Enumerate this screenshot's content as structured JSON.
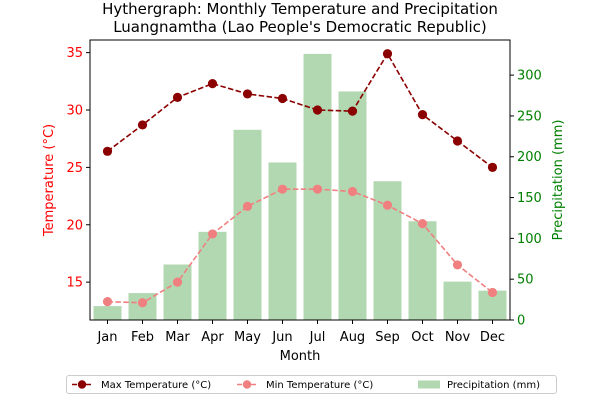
{
  "chart_data": {
    "type": "bar",
    "title_line1": "Hythergraph: Monthly Temperature and Precipitation",
    "title_line2": "Luangnamtha (Lao People's Democratic Republic)",
    "xlabel": "Month",
    "ylabel_left": "Temperature (°C)",
    "ylabel_right": "Precipitation (mm)",
    "categories": [
      "Jan",
      "Feb",
      "Mar",
      "Apr",
      "May",
      "Jun",
      "Jul",
      "Aug",
      "Sep",
      "Oct",
      "Nov",
      "Dec"
    ],
    "left_ylim": [
      11.7,
      36.1
    ],
    "left_ticks": [
      15,
      20,
      25,
      30,
      35
    ],
    "right_ylim": [
      0,
      343
    ],
    "right_ticks": [
      0,
      50,
      100,
      150,
      200,
      250,
      300
    ],
    "grid": false,
    "legend_position": "bottom",
    "series": [
      {
        "name": "Max Temperature (°C)",
        "kind": "line",
        "axis": "left",
        "color": "#8b0000",
        "dashed": true,
        "values": [
          26.4,
          28.7,
          31.1,
          32.3,
          31.4,
          31.0,
          30.0,
          29.9,
          34.9,
          29.6,
          27.3,
          25.0
        ]
      },
      {
        "name": "Min Temperature (°C)",
        "kind": "line",
        "axis": "left",
        "color": "#f08080",
        "dashed": true,
        "values": [
          13.3,
          13.2,
          15.0,
          19.2,
          21.6,
          23.1,
          23.1,
          22.9,
          21.7,
          20.1,
          16.5,
          14.1
        ]
      },
      {
        "name": "Precipitation (mm)",
        "kind": "bar",
        "axis": "right",
        "color": "#b2d8b2",
        "values": [
          17,
          33,
          68,
          108,
          233,
          193,
          326,
          280,
          170,
          121,
          47,
          36
        ]
      }
    ]
  }
}
